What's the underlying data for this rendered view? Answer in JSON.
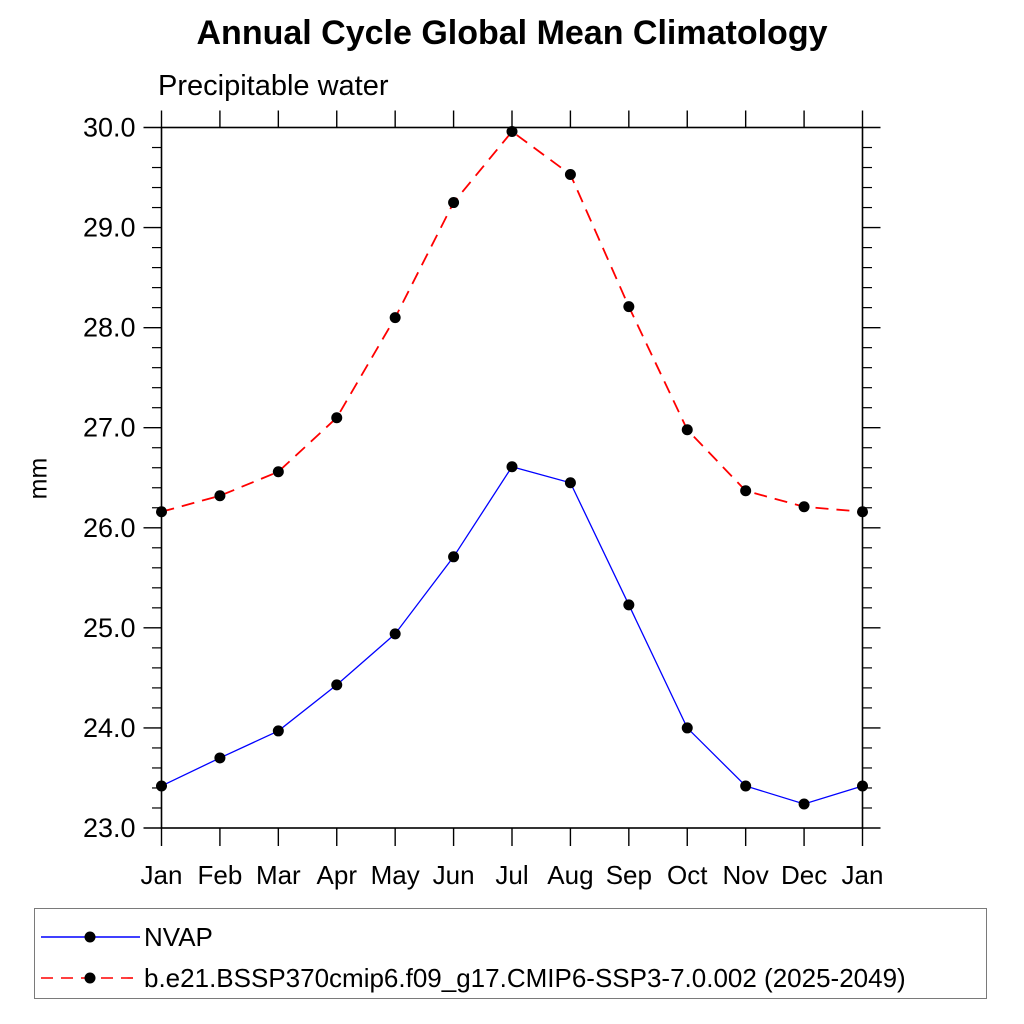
{
  "chart": {
    "title": "Annual Cycle Global Mean Climatology",
    "subtitle": "Precipitable water",
    "ylabel": "mm"
  },
  "legend": {
    "position": "bottom",
    "items": [
      {
        "label": "NVAP",
        "color": "#0000ff",
        "style": "solid",
        "marker": "black-dot"
      },
      {
        "label": "b.e21.BSSP370cmip6.f09_g17.CMIP6-SSP3-7.0.002 (2025-2049)",
        "color": "#ff0000",
        "style": "dashed",
        "marker": "black-dot"
      }
    ]
  },
  "chart_data": {
    "type": "line",
    "title": "Annual Cycle Global Mean Climatology",
    "subtitle": "Precipitable water",
    "xlabel": "",
    "ylabel": "mm",
    "categories": [
      "Jan",
      "Feb",
      "Mar",
      "Apr",
      "May",
      "Jun",
      "Jul",
      "Aug",
      "Sep",
      "Oct",
      "Nov",
      "Dec",
      "Jan"
    ],
    "ylim": [
      23.0,
      30.0
    ],
    "ytick_interval": 1.0,
    "yminor_interval": 0.2,
    "ytick_labels": [
      "23.0",
      "24.0",
      "25.0",
      "26.0",
      "27.0",
      "28.0",
      "29.0",
      "30.0"
    ],
    "grid": false,
    "legend_position": "bottom",
    "marker": "filled-black-circle",
    "series": [
      {
        "name": "NVAP",
        "color": "#0000ff",
        "line_style": "solid",
        "values": [
          23.42,
          23.7,
          23.97,
          24.43,
          24.94,
          25.71,
          26.61,
          26.45,
          25.23,
          24.0,
          23.42,
          23.24,
          23.42
        ]
      },
      {
        "name": "b.e21.BSSP370cmip6.f09_g17.CMIP6-SSP3-7.0.002 (2025-2049)",
        "color": "#ff0000",
        "line_style": "dashed",
        "values": [
          26.16,
          26.32,
          26.56,
          27.1,
          28.1,
          29.25,
          29.96,
          29.53,
          28.21,
          26.98,
          26.37,
          26.21,
          26.16
        ]
      }
    ]
  }
}
